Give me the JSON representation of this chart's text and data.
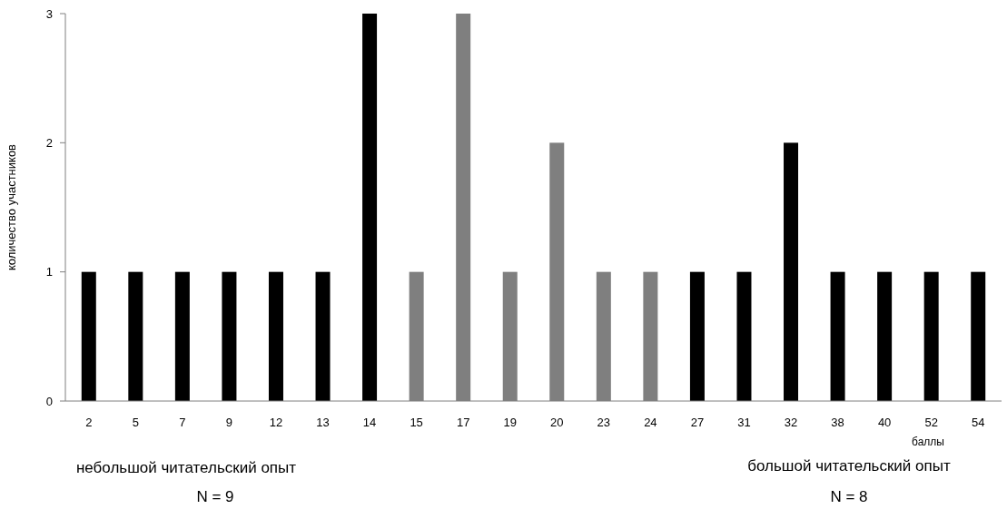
{
  "chart_data": {
    "type": "bar",
    "ylabel": "количество участников",
    "xlabel": "баллы",
    "categories": [
      "2",
      "5",
      "7",
      "9",
      "12",
      "13",
      "14",
      "15",
      "17",
      "19",
      "20",
      "23",
      "24",
      "27",
      "31",
      "32",
      "38",
      "40",
      "52",
      "54"
    ],
    "values": [
      1,
      1,
      1,
      1,
      1,
      1,
      3,
      1,
      3,
      1,
      2,
      1,
      1,
      1,
      1,
      2,
      1,
      1,
      1,
      1
    ],
    "colors": [
      "#000000",
      "#000000",
      "#000000",
      "#000000",
      "#000000",
      "#000000",
      "#000000",
      "#7f7f7f",
      "#7f7f7f",
      "#7f7f7f",
      "#7f7f7f",
      "#7f7f7f",
      "#7f7f7f",
      "#000000",
      "#000000",
      "#000000",
      "#000000",
      "#000000",
      "#000000",
      "#000000"
    ],
    "ylim": [
      0,
      3
    ],
    "yticks": [
      0,
      1,
      2,
      3
    ],
    "grid": false,
    "annotations": [
      "небольшой читательский опыт",
      "N = 9",
      "большой читательский опыт",
      "N = 8"
    ]
  }
}
